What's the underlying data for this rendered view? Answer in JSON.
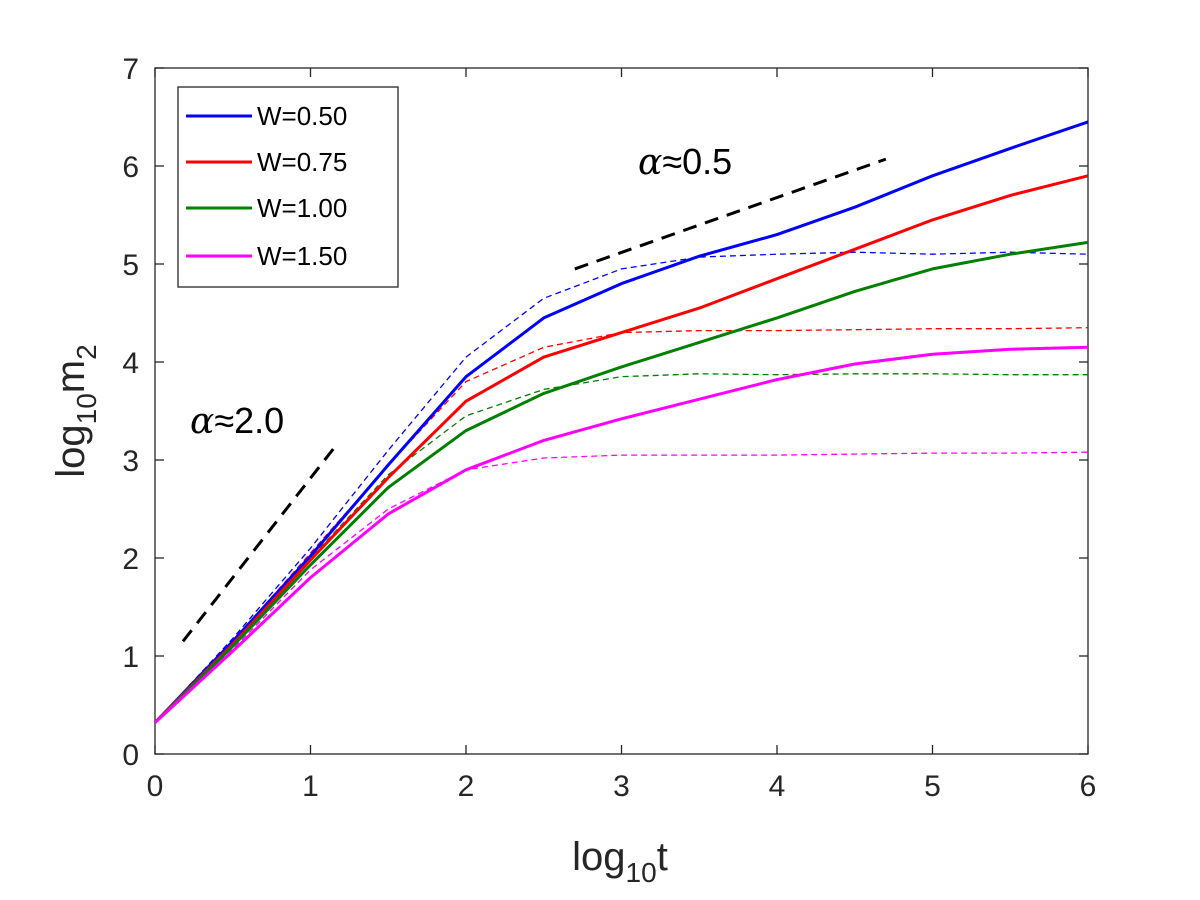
{
  "chart_data": {
    "type": "line",
    "title": "",
    "xlabel": "log10t",
    "xlabel_base": "log",
    "xlabel_sub": "10",
    "xlabel_rest": "t",
    "ylabel": "log10m2",
    "ylabel_base": "log",
    "ylabel_sub1": "10",
    "ylabel_mid": "m",
    "ylabel_sub2": "2",
    "xlim": [
      0,
      6
    ],
    "ylim": [
      0,
      7
    ],
    "xticks": [
      0,
      1,
      2,
      3,
      4,
      5,
      6
    ],
    "yticks": [
      0,
      1,
      2,
      3,
      4,
      5,
      6,
      7
    ],
    "grid": false,
    "legend_position": "top-left",
    "series": [
      {
        "name": "W=0.50",
        "color": "#0000ff",
        "solid": {
          "x": [
            0,
            0.5,
            1.0,
            1.5,
            2.0,
            2.5,
            3.0,
            3.5,
            4.0,
            4.5,
            5.0,
            5.5,
            6.0
          ],
          "y": [
            0.32,
            1.15,
            2.02,
            2.95,
            3.85,
            4.45,
            4.8,
            5.08,
            5.3,
            5.58,
            5.9,
            6.18,
            6.45
          ]
        },
        "dashed": {
          "x": [
            0,
            0.5,
            1.0,
            1.5,
            2.0,
            2.5,
            3.0,
            3.5,
            4.0,
            4.5,
            5.0,
            5.5,
            6.0
          ],
          "y": [
            0.32,
            1.18,
            2.1,
            3.1,
            4.05,
            4.65,
            4.95,
            5.07,
            5.1,
            5.12,
            5.1,
            5.12,
            5.1
          ]
        }
      },
      {
        "name": "W=0.75",
        "color": "#ff0000",
        "solid": {
          "x": [
            0,
            0.5,
            1.0,
            1.5,
            2.0,
            2.5,
            3.0,
            3.5,
            4.0,
            4.5,
            5.0,
            5.5,
            6.0
          ],
          "y": [
            0.32,
            1.12,
            1.98,
            2.82,
            3.6,
            4.05,
            4.3,
            4.55,
            4.85,
            5.15,
            5.45,
            5.7,
            5.9
          ]
        },
        "dashed": {
          "x": [
            0,
            0.5,
            1.0,
            1.5,
            2.0,
            2.5,
            3.0,
            3.5,
            4.0,
            4.5,
            5.0,
            5.5,
            6.0
          ],
          "y": [
            0.32,
            1.15,
            2.05,
            2.95,
            3.8,
            4.15,
            4.3,
            4.32,
            4.32,
            4.33,
            4.34,
            4.34,
            4.35
          ]
        }
      },
      {
        "name": "W=1.00",
        "color": "#008000",
        "solid": {
          "x": [
            0,
            0.5,
            1.0,
            1.5,
            2.0,
            2.5,
            3.0,
            3.5,
            4.0,
            4.5,
            5.0,
            5.5,
            6.0
          ],
          "y": [
            0.32,
            1.1,
            1.93,
            2.72,
            3.3,
            3.68,
            3.95,
            4.2,
            4.45,
            4.72,
            4.95,
            5.1,
            5.22
          ]
        },
        "dashed": {
          "x": [
            0,
            0.5,
            1.0,
            1.5,
            2.0,
            2.5,
            3.0,
            3.5,
            4.0,
            4.5,
            5.0,
            5.5,
            6.0
          ],
          "y": [
            0.32,
            1.12,
            2.0,
            2.85,
            3.45,
            3.72,
            3.85,
            3.88,
            3.87,
            3.88,
            3.88,
            3.87,
            3.87
          ]
        }
      },
      {
        "name": "W=1.50",
        "color": "#ff00ff",
        "solid": {
          "x": [
            0,
            0.5,
            1.0,
            1.5,
            2.0,
            2.5,
            3.0,
            3.5,
            4.0,
            4.5,
            5.0,
            5.5,
            6.0
          ],
          "y": [
            0.32,
            1.05,
            1.8,
            2.45,
            2.9,
            3.2,
            3.42,
            3.62,
            3.82,
            3.98,
            4.08,
            4.13,
            4.15
          ]
        },
        "dashed": {
          "x": [
            0,
            0.5,
            1.0,
            1.5,
            2.0,
            2.5,
            3.0,
            3.5,
            4.0,
            4.5,
            5.0,
            5.5,
            6.0
          ],
          "y": [
            0.32,
            1.07,
            1.88,
            2.5,
            2.9,
            3.02,
            3.05,
            3.05,
            3.05,
            3.06,
            3.07,
            3.07,
            3.08
          ]
        }
      }
    ],
    "reference_lines": [
      {
        "label": "α≈2.0",
        "greek": "α",
        "approx": "≈2.0",
        "x": [
          0.18,
          1.15
        ],
        "y": [
          1.15,
          3.12
        ],
        "color": "#000000"
      },
      {
        "label": "α≈0.5",
        "greek": "α",
        "approx": "≈0.5",
        "x": [
          2.7,
          4.7
        ],
        "y": [
          4.95,
          6.07
        ],
        "color": "#000000"
      }
    ]
  }
}
